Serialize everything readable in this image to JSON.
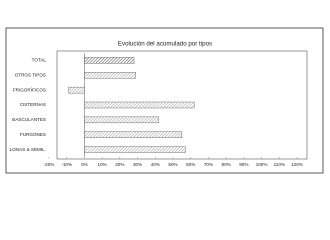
{
  "chart_data": {
    "type": "barh",
    "title": "Evolución del acumulado por tipos",
    "categories": [
      "TOTAL",
      "OTROS TIPOS",
      "FRIGORÍFICOS",
      "CISTERNAS",
      "BASCULANTES",
      "FURGONES",
      "LONAS & SEMIL."
    ],
    "values": [
      28,
      29,
      -9,
      62,
      42,
      55,
      57
    ],
    "colors": [
      "#303030",
      "#8c8c8c",
      "#8c8c8c",
      "#8c8c8c",
      "#8c8c8c",
      "#8c8c8c",
      "#8c8c8c"
    ],
    "xlim": [
      -20,
      120
    ],
    "xticks": [
      {
        "value": -20,
        "label": "-20%"
      },
      {
        "value": -10,
        "label": "-10%"
      },
      {
        "value": 0,
        "label": "0%"
      },
      {
        "value": 10,
        "label": "10%"
      },
      {
        "value": 20,
        "label": "20%"
      },
      {
        "value": 30,
        "label": "30%"
      },
      {
        "value": 40,
        "label": "40%"
      },
      {
        "value": 50,
        "label": "50%"
      },
      {
        "value": 60,
        "label": "60%"
      },
      {
        "value": 70,
        "label": "70%"
      },
      {
        "value": 80,
        "label": "80%"
      },
      {
        "value": 90,
        "label": "90%"
      },
      {
        "value": 100,
        "label": "100%"
      },
      {
        "value": 110,
        "label": "110%"
      },
      {
        "value": 120,
        "label": "120%"
      }
    ],
    "grid": false
  }
}
